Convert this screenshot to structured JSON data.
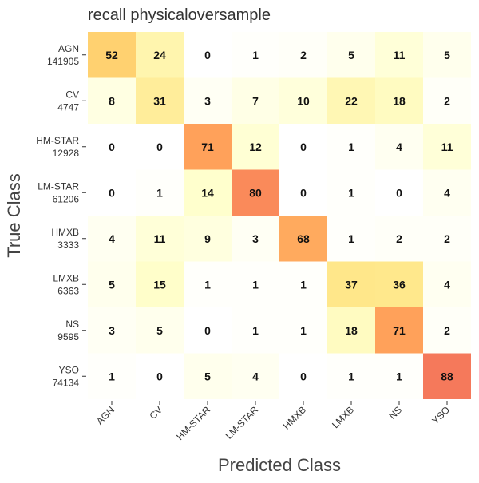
{
  "chart_data": {
    "type": "heatmap",
    "title": "recall physicaloversample",
    "xlabel": "Predicted Class",
    "ylabel": "True Class",
    "x_categories": [
      "AGN",
      "CV",
      "HM-STAR",
      "LM-STAR",
      "HMXB",
      "LMXB",
      "NS",
      "YSO"
    ],
    "y_categories": [
      {
        "name": "AGN",
        "count": "141905"
      },
      {
        "name": "CV",
        "count": "4747"
      },
      {
        "name": "HM-STAR",
        "count": "12928"
      },
      {
        "name": "LM-STAR",
        "count": "61206"
      },
      {
        "name": "HMXB",
        "count": "3333"
      },
      {
        "name": "LMXB",
        "count": "6363"
      },
      {
        "name": "NS",
        "count": "9595"
      },
      {
        "name": "YSO",
        "count": "74134"
      }
    ],
    "values": [
      [
        52,
        24,
        0,
        1,
        2,
        5,
        11,
        5
      ],
      [
        8,
        31,
        3,
        7,
        10,
        22,
        18,
        2
      ],
      [
        0,
        0,
        71,
        12,
        0,
        1,
        4,
        11
      ],
      [
        0,
        1,
        14,
        80,
        0,
        1,
        0,
        4
      ],
      [
        4,
        11,
        9,
        3,
        68,
        1,
        2,
        2
      ],
      [
        5,
        15,
        1,
        1,
        1,
        37,
        36,
        4
      ],
      [
        3,
        5,
        0,
        1,
        1,
        18,
        71,
        2
      ],
      [
        1,
        0,
        5,
        4,
        0,
        1,
        1,
        88
      ]
    ],
    "colorscale": [
      "#ffffff",
      "#ffffcc",
      "#fff0a0",
      "#ffe07a",
      "#ffc86a",
      "#ffa05a",
      "#f67c5a",
      "#ee6b62"
    ],
    "value_range": [
      0,
      100
    ],
    "grid": false
  }
}
